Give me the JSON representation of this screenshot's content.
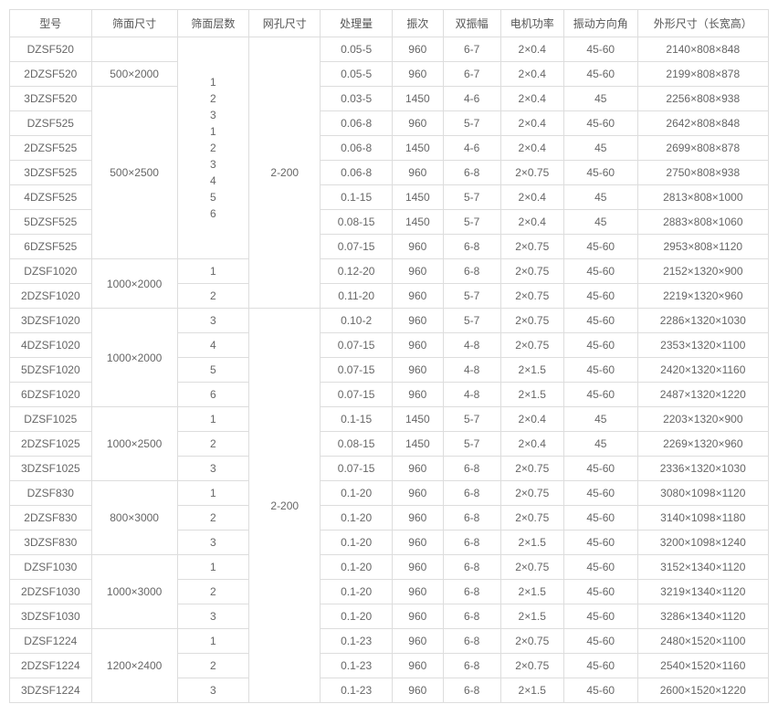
{
  "table": {
    "headers": [
      "型号",
      "筛面尺寸",
      "筛面层数",
      "网孔尺寸",
      "处理量",
      "振次",
      "双振幅",
      "电机功率",
      "振动方向角",
      "外形尺寸（长宽高）"
    ],
    "column_classes": [
      "col-model",
      "col-screen",
      "col-layer",
      "col-mesh",
      "col-cap",
      "col-freq",
      "col-amp",
      "col-power",
      "col-angle",
      "col-dim"
    ],
    "colors": {
      "border": "#dddddd",
      "text": "#666666",
      "header_text": "#555555",
      "background": "#ffffff"
    },
    "font_size": 12,
    "rows": [
      {
        "model": "DZSF520",
        "screen": {
          "text": "",
          "rowspan": 1
        },
        "layer": null,
        "mesh": null,
        "cap": "0.05-5",
        "freq": "960",
        "amp": "6-7",
        "power": "2×0.4",
        "angle": "45-60",
        "dim": "2140×808×848",
        "layer_stack_start": {
          "rowspan": 9,
          "items": [
            "1",
            "2",
            "3",
            "1",
            "2",
            "3",
            "4",
            "5",
            "6"
          ]
        },
        "mesh_start": {
          "rowspan": 11,
          "text": "2-200"
        }
      },
      {
        "model": "2DZSF520",
        "screen": {
          "text": "500×2000",
          "rowspan": 1
        },
        "cap": "0.05-5",
        "freq": "960",
        "amp": "6-7",
        "power": "2×0.4",
        "angle": "45-60",
        "dim": "2199×808×878"
      },
      {
        "model": "3DZSF520",
        "screen": {
          "text": "500×2500",
          "rowspan": 7
        },
        "cap": "0.03-5",
        "freq": "1450",
        "amp": "4-6",
        "power": "2×0.4",
        "angle": "45",
        "dim": "2256×808×938"
      },
      {
        "model": "DZSF525",
        "cap": "0.06-8",
        "freq": "960",
        "amp": "5-7",
        "power": "2×0.4",
        "angle": "45-60",
        "dim": "2642×808×848"
      },
      {
        "model": "2DZSF525",
        "cap": "0.06-8",
        "freq": "1450",
        "amp": "4-6",
        "power": "2×0.4",
        "angle": "45",
        "dim": "2699×808×878"
      },
      {
        "model": "3DZSF525",
        "cap": "0.06-8",
        "freq": "960",
        "amp": "6-8",
        "power": "2×0.75",
        "angle": "45-60",
        "dim": "2750×808×938"
      },
      {
        "model": "4DZSF525",
        "cap": "0.1-15",
        "freq": "1450",
        "amp": "5-7",
        "power": "2×0.4",
        "angle": "45",
        "dim": "2813×808×1000"
      },
      {
        "model": "5DZSF525",
        "cap": "0.08-15",
        "freq": "1450",
        "amp": "5-7",
        "power": "2×0.4",
        "angle": "45",
        "dim": "2883×808×1060"
      },
      {
        "model": "6DZSF525",
        "cap": "0.07-15",
        "freq": "960",
        "amp": "6-8",
        "power": "2×0.75",
        "angle": "45-60",
        "dim": "2953×808×1120"
      },
      {
        "model": "DZSF1020",
        "screen": {
          "text": "1000×2000",
          "rowspan": 2
        },
        "layer": {
          "text": "1",
          "rowspan": 1
        },
        "cap": "0.12-20",
        "freq": "960",
        "amp": "6-8",
        "power": "2×0.75",
        "angle": "45-60",
        "dim": "2152×1320×900"
      },
      {
        "model": "2DZSF1020",
        "layer": {
          "text": "2",
          "rowspan": 1
        },
        "cap": "0.11-20",
        "freq": "960",
        "amp": "5-7",
        "power": "2×0.75",
        "angle": "45-60",
        "dim": "2219×1320×960"
      },
      {
        "model": "3DZSF1020",
        "screen": {
          "text": "1000×2000",
          "rowspan": 4
        },
        "layer": {
          "text": "3",
          "rowspan": 1
        },
        "mesh_start": {
          "rowspan": 16,
          "text": "2-200"
        },
        "cap": "0.10-2",
        "freq": "960",
        "amp": "5-7",
        "power": "2×0.75",
        "angle": "45-60",
        "dim": "2286×1320×1030"
      },
      {
        "model": "4DZSF1020",
        "layer": {
          "text": "4",
          "rowspan": 1
        },
        "cap": "0.07-15",
        "freq": "960",
        "amp": "4-8",
        "power": "2×0.75",
        "angle": "45-60",
        "dim": "2353×1320×1100"
      },
      {
        "model": "5DZSF1020",
        "layer": {
          "text": "5",
          "rowspan": 1
        },
        "cap": "0.07-15",
        "freq": "960",
        "amp": "4-8",
        "power": "2×1.5",
        "angle": "45-60",
        "dim": "2420×1320×1160"
      },
      {
        "model": "6DZSF1020",
        "layer": {
          "text": "6",
          "rowspan": 1
        },
        "cap": "0.07-15",
        "freq": "960",
        "amp": "4-8",
        "power": "2×1.5",
        "angle": "45-60",
        "dim": "2487×1320×1220"
      },
      {
        "model": "DZSF1025",
        "screen": {
          "text": "1000×2500",
          "rowspan": 3
        },
        "layer": {
          "text": "1",
          "rowspan": 1
        },
        "cap": "0.1-15",
        "freq": "1450",
        "amp": "5-7",
        "power": "2×0.4",
        "angle": "45",
        "dim": "2203×1320×900"
      },
      {
        "model": "2DZSF1025",
        "layer": {
          "text": "2",
          "rowspan": 1
        },
        "cap": "0.08-15",
        "freq": "1450",
        "amp": "5-7",
        "power": "2×0.4",
        "angle": "45",
        "dim": "2269×1320×960"
      },
      {
        "model": "3DZSF1025",
        "layer": {
          "text": "3",
          "rowspan": 1
        },
        "cap": "0.07-15",
        "freq": "960",
        "amp": "6-8",
        "power": "2×0.75",
        "angle": "45-60",
        "dim": "2336×1320×1030"
      },
      {
        "model": "DZSF830",
        "screen": {
          "text": "800×3000",
          "rowspan": 3
        },
        "layer": {
          "text": "1",
          "rowspan": 1
        },
        "cap": "0.1-20",
        "freq": "960",
        "amp": "6-8",
        "power": "2×0.75",
        "angle": "45-60",
        "dim": "3080×1098×1120"
      },
      {
        "model": "2DZSF830",
        "layer": {
          "text": "2",
          "rowspan": 1
        },
        "cap": "0.1-20",
        "freq": "960",
        "amp": "6-8",
        "power": "2×0.75",
        "angle": "45-60",
        "dim": "3140×1098×1180"
      },
      {
        "model": "3DZSF830",
        "layer": {
          "text": "3",
          "rowspan": 1
        },
        "cap": "0.1-20",
        "freq": "960",
        "amp": "6-8",
        "power": "2×1.5",
        "angle": "45-60",
        "dim": "3200×1098×1240"
      },
      {
        "model": "DZSF1030",
        "screen": {
          "text": "1000×3000",
          "rowspan": 3
        },
        "layer": {
          "text": "1",
          "rowspan": 1
        },
        "cap": "0.1-20",
        "freq": "960",
        "amp": "6-8",
        "power": "2×0.75",
        "angle": "45-60",
        "dim": "3152×1340×1120"
      },
      {
        "model": "2DZSF1030",
        "layer": {
          "text": "2",
          "rowspan": 1
        },
        "cap": "0.1-20",
        "freq": "960",
        "amp": "6-8",
        "power": "2×1.5",
        "angle": "45-60",
        "dim": "3219×1340×1120"
      },
      {
        "model": "3DZSF1030",
        "layer": {
          "text": "3",
          "rowspan": 1
        },
        "cap": "0.1-20",
        "freq": "960",
        "amp": "6-8",
        "power": "2×1.5",
        "angle": "45-60",
        "dim": "3286×1340×1120"
      },
      {
        "model": "DZSF1224",
        "screen": {
          "text": "1200×2400",
          "rowspan": 3
        },
        "layer": {
          "text": "1",
          "rowspan": 1
        },
        "cap": "0.1-23",
        "freq": "960",
        "amp": "6-8",
        "power": "2×0.75",
        "angle": "45-60",
        "dim": "2480×1520×1100"
      },
      {
        "model": "2DZSF1224",
        "layer": {
          "text": "2",
          "rowspan": 1
        },
        "cap": "0.1-23",
        "freq": "960",
        "amp": "6-8",
        "power": "2×0.75",
        "angle": "45-60",
        "dim": "2540×1520×1160"
      },
      {
        "model": "3DZSF1224",
        "layer": {
          "text": "3",
          "rowspan": 1
        },
        "cap": "0.1-23",
        "freq": "960",
        "amp": "6-8",
        "power": "2×1.5",
        "angle": "45-60",
        "dim": "2600×1520×1220"
      }
    ]
  }
}
